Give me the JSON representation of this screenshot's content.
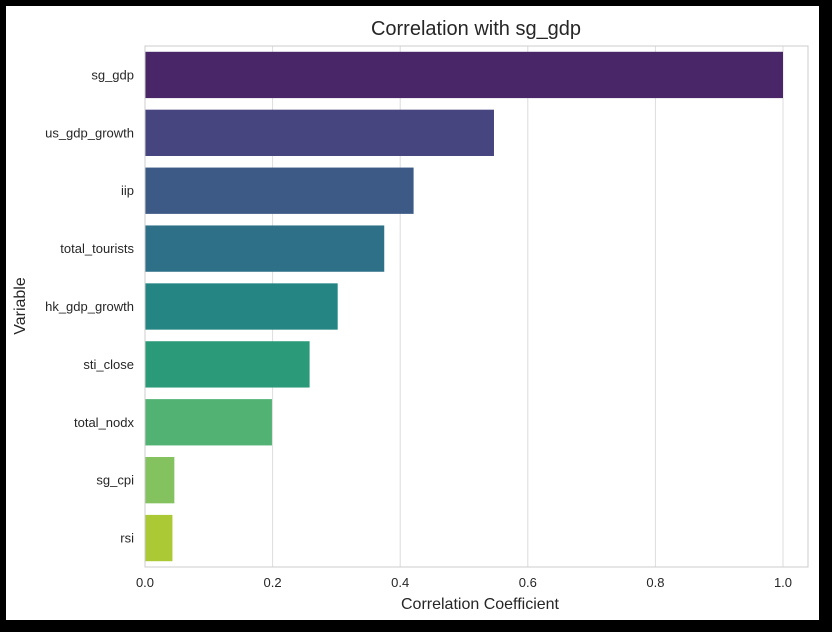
{
  "chart_data": {
    "type": "bar",
    "orientation": "horizontal",
    "title": "Correlation with sg_gdp",
    "xlabel": "Correlation Coefficient",
    "ylabel": "Variable",
    "xlim": [
      0,
      1.05
    ],
    "xticks": [
      "0.0",
      "0.2",
      "0.4",
      "0.6",
      "0.8",
      "1.0"
    ],
    "xtick_values": [
      0,
      0.2,
      0.4,
      0.6,
      0.8,
      1.0
    ],
    "grid": "vertical",
    "categories": [
      "sg_gdp",
      "us_gdp_growth",
      "iip",
      "total_tourists",
      "hk_gdp_growth",
      "sti_close",
      "total_nodx",
      "sg_cpi",
      "rsi"
    ],
    "values": [
      1.0,
      0.547,
      0.421,
      0.375,
      0.302,
      0.258,
      0.199,
      0.046,
      0.043
    ],
    "colors": [
      "#482667",
      "#47457f",
      "#3d5a87",
      "#2d7088",
      "#248583",
      "#2b9a78",
      "#52b273",
      "#83c25e",
      "#abc934"
    ]
  }
}
